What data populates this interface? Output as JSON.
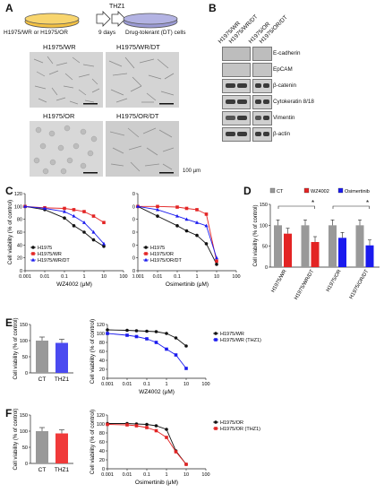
{
  "panel_A": {
    "label": "A",
    "cell1": "H1975/WR or H1975/OR",
    "drug": "THZ1",
    "duration": "9 days",
    "cell2": "Drug-tolerant (DT) cells",
    "images": [
      "H1975/WR",
      "H1975/WR/DT",
      "H1975/OR",
      "H1975/OR/DT"
    ],
    "scale_bar": "100 µm"
  },
  "panel_B": {
    "label": "B",
    "lanes": [
      "H1975/WR",
      "H1975/WR/DT",
      "H1975/OR",
      "H1975/OR/DT"
    ],
    "blots": [
      "E-cadherin",
      "EpCAM",
      "β-catenin",
      "Cytokeratin 8/18",
      "Vimentin",
      "β-actin"
    ]
  },
  "panel_C": {
    "label": "C"
  },
  "panel_D": {
    "label": "D"
  },
  "panel_E": {
    "label": "E"
  },
  "panel_F": {
    "label": "F"
  },
  "colors": {
    "black": "#111111",
    "red": "#e32424",
    "blue": "#1a1aee",
    "gray": "#999999"
  },
  "chart_data": [
    {
      "id": "C1",
      "type": "line",
      "xscale": "log",
      "xlabel": "WZ4002 (μM)",
      "ylabel": "Cell viability (% of control)",
      "xlim": [
        0.001,
        100
      ],
      "ylim": [
        0,
        120
      ],
      "xticks": [
        "0.001",
        "0.01",
        "0.1",
        "1",
        "10",
        "100"
      ],
      "yticks": [
        "0",
        "20",
        "40",
        "60",
        "80",
        "100",
        "120"
      ],
      "legend": [
        "H1975",
        "H1975/WR",
        "H1975/WR/DT"
      ],
      "x": [
        0.001,
        0.01,
        0.1,
        0.3,
        1,
        3,
        10
      ],
      "series": [
        {
          "name": "H1975",
          "color": "#111111",
          "values": [
            100,
            95,
            82,
            70,
            60,
            48,
            38
          ]
        },
        {
          "name": "H1975/WR",
          "color": "#e32424",
          "values": [
            100,
            98,
            97,
            95,
            92,
            85,
            75
          ]
        },
        {
          "name": "H1975/WR/DT",
          "color": "#1a1aee",
          "values": [
            100,
            97,
            92,
            85,
            75,
            60,
            42
          ]
        }
      ]
    },
    {
      "id": "C2",
      "type": "line",
      "xscale": "log",
      "xlabel": "Osimertinib (μM)",
      "ylabel": "",
      "xlim": [
        0.001,
        100
      ],
      "ylim": [
        0,
        120
      ],
      "xticks": [
        "0.001",
        "0.01",
        "0.1",
        "1",
        "10",
        "100"
      ],
      "yticks": [
        "0",
        "20",
        "40",
        "60",
        "80",
        "100",
        "120"
      ],
      "legend": [
        "H1975",
        "H1975/OR",
        "H1975/OR/DT"
      ],
      "x": [
        0.001,
        0.01,
        0.1,
        0.3,
        1,
        3,
        10
      ],
      "series": [
        {
          "name": "H1975",
          "color": "#111111",
          "values": [
            100,
            85,
            70,
            62,
            55,
            42,
            10
          ]
        },
        {
          "name": "H1975/OR",
          "color": "#e32424",
          "values": [
            100,
            100,
            99,
            97,
            95,
            88,
            15
          ]
        },
        {
          "name": "H1975/OR/DT",
          "color": "#1a1aee",
          "values": [
            100,
            95,
            85,
            80,
            75,
            70,
            20
          ]
        }
      ]
    },
    {
      "id": "D",
      "type": "bar",
      "ylabel": "Cell viability (% of control)",
      "ylim": [
        0,
        150
      ],
      "yticks": [
        "0",
        "50",
        "100",
        "150"
      ],
      "legend": [
        "CT",
        "WZ4002",
        "Osimertinib"
      ],
      "categories": [
        "H1975/WR",
        "H1975/WR/DT",
        "H1975/OR",
        "H1975/OR/DT"
      ],
      "series": [
        {
          "name": "CT",
          "color": "#999999",
          "values": [
            100,
            100,
            100,
            100
          ]
        },
        {
          "name": "WZ4002",
          "color": "#e32424",
          "values": [
            80,
            60,
            null,
            null
          ]
        },
        {
          "name": "Osimertinib",
          "color": "#1a1aee",
          "values": [
            null,
            null,
            70,
            52
          ]
        }
      ],
      "significance": [
        "*",
        "*"
      ]
    },
    {
      "id": "E_bar",
      "type": "bar",
      "ylabel": "Cell viability (% of control)",
      "ylim": [
        0,
        150
      ],
      "yticks": [
        "0",
        "50",
        "100",
        "150"
      ],
      "categories": [
        "CT",
        "THZ1"
      ],
      "values": [
        100,
        93
      ],
      "colors": [
        "#999999",
        "#4a4af0"
      ]
    },
    {
      "id": "E_line",
      "type": "line",
      "xscale": "log",
      "xlabel": "WZ4002 (μM)",
      "ylabel": "Cell viability (% of control)",
      "xlim": [
        0.001,
        100
      ],
      "ylim": [
        0,
        120
      ],
      "xticks": [
        "0.001",
        "0.01",
        "0.1",
        "1",
        "10",
        "100"
      ],
      "yticks": [
        "0",
        "20",
        "40",
        "60",
        "80",
        "100",
        "120"
      ],
      "legend": [
        "H1975/WR",
        "H1975/WR (THZ1)"
      ],
      "x": [
        0.001,
        0.01,
        0.03,
        0.1,
        0.3,
        1,
        3,
        10
      ],
      "series": [
        {
          "name": "H1975/WR",
          "color": "#111111",
          "values": [
            108,
            107,
            106,
            105,
            104,
            100,
            90,
            72
          ]
        },
        {
          "name": "H1975/WR (THZ1)",
          "color": "#1a1aee",
          "values": [
            100,
            96,
            93,
            88,
            80,
            65,
            52,
            22
          ]
        }
      ]
    },
    {
      "id": "F_bar",
      "type": "bar",
      "ylabel": "Cell viability (% of control)",
      "ylim": [
        0,
        150
      ],
      "yticks": [
        "0",
        "50",
        "100",
        "150"
      ],
      "categories": [
        "CT",
        "THZ1"
      ],
      "values": [
        100,
        93
      ],
      "colors": [
        "#999999",
        "#f03a3a"
      ]
    },
    {
      "id": "F_line",
      "type": "line",
      "xscale": "log",
      "xlabel": "Osimertinib (μM)",
      "ylabel": "Cell viability (% of control)",
      "xlim": [
        0.001,
        100
      ],
      "ylim": [
        0,
        120
      ],
      "xticks": [
        "0.001",
        "0.01",
        "0.1",
        "1",
        "10",
        "100"
      ],
      "yticks": [
        "0",
        "20",
        "40",
        "60",
        "80",
        "100",
        "120"
      ],
      "legend": [
        "H1975/OR",
        "H1975/OR (THZ1)"
      ],
      "x": [
        0.001,
        0.01,
        0.03,
        0.1,
        0.3,
        1,
        3,
        10
      ],
      "series": [
        {
          "name": "H1975/OR",
          "color": "#111111",
          "values": [
            101,
            101,
            100,
            99,
            96,
            88,
            40,
            10
          ]
        },
        {
          "name": "H1975/OR (THZ1)",
          "color": "#e32424",
          "values": [
            99,
            98,
            96,
            92,
            85,
            70,
            38,
            10
          ]
        }
      ]
    }
  ]
}
